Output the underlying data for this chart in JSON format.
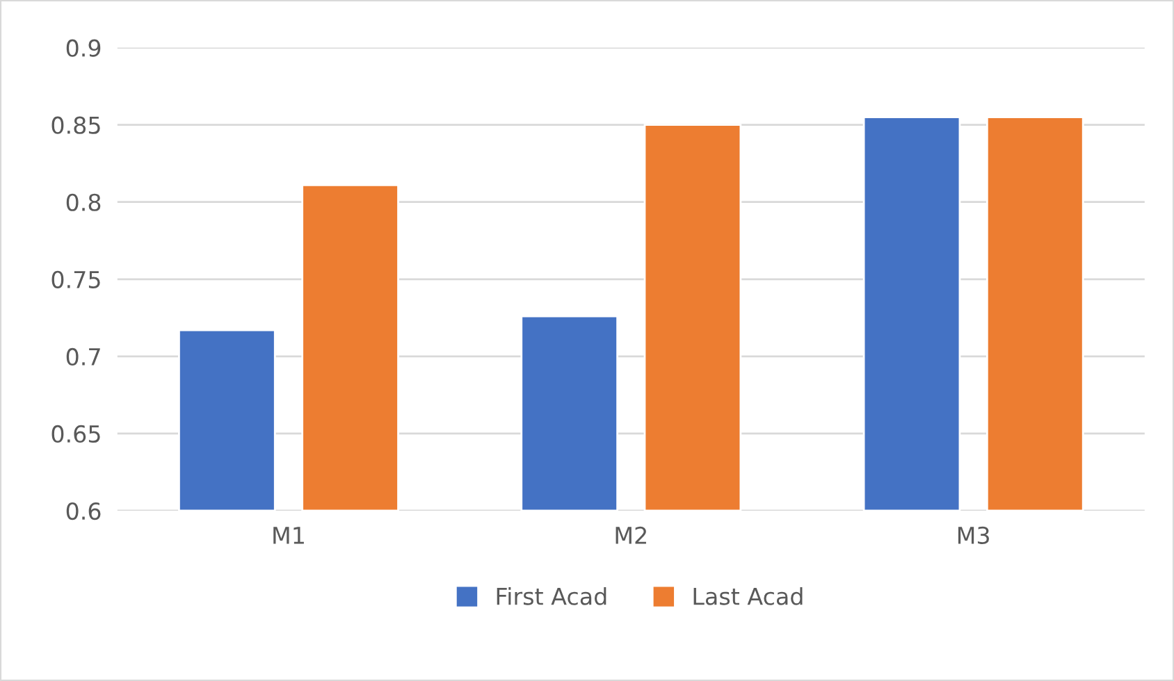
{
  "chart_data": {
    "type": "bar",
    "categories": [
      "M1",
      "M2",
      "M3"
    ],
    "series": [
      {
        "name": "First Acad",
        "color": "#4472c4",
        "values": [
          0.717,
          0.726,
          0.855
        ]
      },
      {
        "name": "Last Acad",
        "color": "#ed7d31",
        "values": [
          0.811,
          0.85,
          0.855
        ]
      }
    ],
    "ylim": [
      0.6,
      0.9
    ],
    "yticks": [
      0.6,
      0.65,
      0.7,
      0.75,
      0.8,
      0.85,
      0.9
    ],
    "grid": "y",
    "legend": "bottom"
  }
}
